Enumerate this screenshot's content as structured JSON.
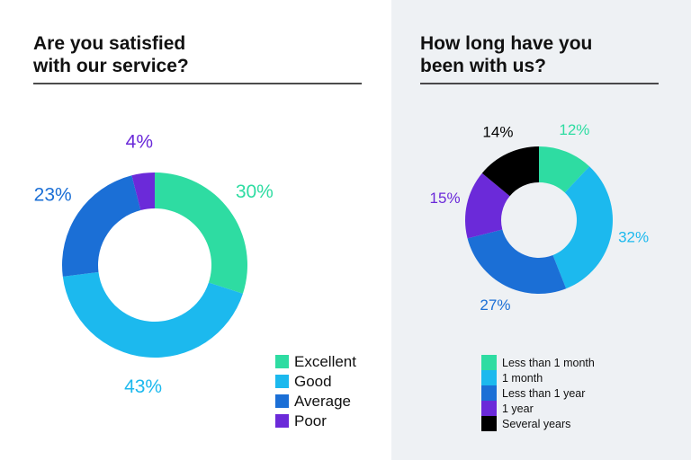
{
  "chart_data": [
    {
      "type": "donut",
      "title": "Are you satisfied with our service?",
      "categories": [
        "Excellent",
        "Good",
        "Average",
        "Poor"
      ],
      "values": [
        30,
        43,
        23,
        4
      ],
      "value_labels": [
        "30%",
        "43%",
        "23%",
        "4%"
      ],
      "colors": [
        "#2edca2",
        "#1cb9ee",
        "#1b6fd6",
        "#6b2ad9"
      ]
    },
    {
      "type": "donut",
      "title": "How long have you been with us?",
      "categories": [
        "Less than 1 month",
        "1 month",
        "Less than 1 year",
        "1 year",
        "Several years"
      ],
      "values": [
        12,
        32,
        27,
        15,
        14
      ],
      "value_labels": [
        "12%",
        "32%",
        "27%",
        "15%",
        "14%"
      ],
      "colors": [
        "#2edca2",
        "#1cb9ee",
        "#1b6fd6",
        "#6b2ad9",
        "#000000"
      ]
    }
  ]
}
